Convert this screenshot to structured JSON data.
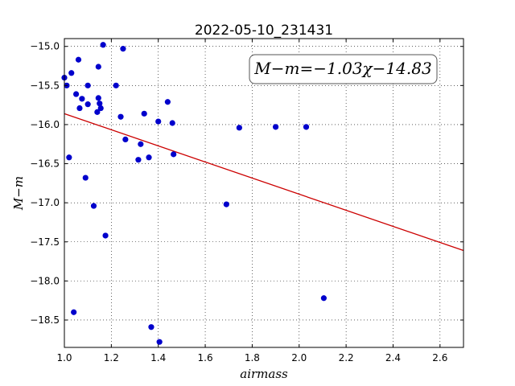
{
  "chart_data": {
    "type": "scatter",
    "title": "2022-05-10_231431",
    "xlabel": "airmass",
    "ylabel": "M−m",
    "xlim": [
      1.0,
      2.7
    ],
    "ylim": [
      -18.85,
      -14.9
    ],
    "y_inverted": true,
    "grid": true,
    "grid_style": "dotted",
    "xticks": [
      1.0,
      1.2,
      1.4,
      1.6,
      1.8,
      2.0,
      2.2,
      2.4,
      2.6
    ],
    "xtick_labels": [
      "1.0",
      "1.2",
      "1.4",
      "1.6",
      "1.8",
      "2.0",
      "2.2",
      "2.4",
      "2.6"
    ],
    "yticks": [
      -15.0,
      -15.5,
      -16.0,
      -16.5,
      -17.0,
      -17.5,
      -18.0,
      -18.5
    ],
    "ytick_labels": [
      "−15.0",
      "−15.5",
      "−16.0",
      "−16.5",
      "−17.0",
      "−17.5",
      "−18.0",
      "−18.5"
    ],
    "annotation": "M−m=−1.03χ−14.83",
    "annotation_position": "top-right",
    "fit": {
      "slope": -1.03,
      "intercept": -14.83,
      "color": "#cc0000"
    },
    "point_color": "#0000cc",
    "points": [
      {
        "x": 1.0,
        "y": -15.4
      },
      {
        "x": 1.01,
        "y": -15.5
      },
      {
        "x": 1.02,
        "y": -16.42
      },
      {
        "x": 1.03,
        "y": -15.34
      },
      {
        "x": 1.04,
        "y": -18.4
      },
      {
        "x": 1.05,
        "y": -15.61
      },
      {
        "x": 1.06,
        "y": -15.17
      },
      {
        "x": 1.065,
        "y": -15.79
      },
      {
        "x": 1.075,
        "y": -15.67
      },
      {
        "x": 1.09,
        "y": -16.68
      },
      {
        "x": 1.1,
        "y": -15.5
      },
      {
        "x": 1.1,
        "y": -15.74
      },
      {
        "x": 1.125,
        "y": -17.04
      },
      {
        "x": 1.14,
        "y": -15.84
      },
      {
        "x": 1.145,
        "y": -15.26
      },
      {
        "x": 1.145,
        "y": -15.66
      },
      {
        "x": 1.15,
        "y": -15.73
      },
      {
        "x": 1.155,
        "y": -15.79
      },
      {
        "x": 1.165,
        "y": -14.98
      },
      {
        "x": 1.175,
        "y": -17.42
      },
      {
        "x": 1.22,
        "y": -15.5
      },
      {
        "x": 1.24,
        "y": -15.9
      },
      {
        "x": 1.25,
        "y": -15.03
      },
      {
        "x": 1.26,
        "y": -16.19
      },
      {
        "x": 1.315,
        "y": -16.45
      },
      {
        "x": 1.325,
        "y": -16.25
      },
      {
        "x": 1.34,
        "y": -15.86
      },
      {
        "x": 1.36,
        "y": -16.42
      },
      {
        "x": 1.37,
        "y": -18.59
      },
      {
        "x": 1.4,
        "y": -15.96
      },
      {
        "x": 1.405,
        "y": -18.78
      },
      {
        "x": 1.44,
        "y": -15.71
      },
      {
        "x": 1.46,
        "y": -15.98
      },
      {
        "x": 1.465,
        "y": -16.38
      },
      {
        "x": 1.69,
        "y": -17.02
      },
      {
        "x": 1.745,
        "y": -16.04
      },
      {
        "x": 1.9,
        "y": -16.03
      },
      {
        "x": 2.03,
        "y": -16.03
      },
      {
        "x": 2.105,
        "y": -18.22
      }
    ]
  }
}
